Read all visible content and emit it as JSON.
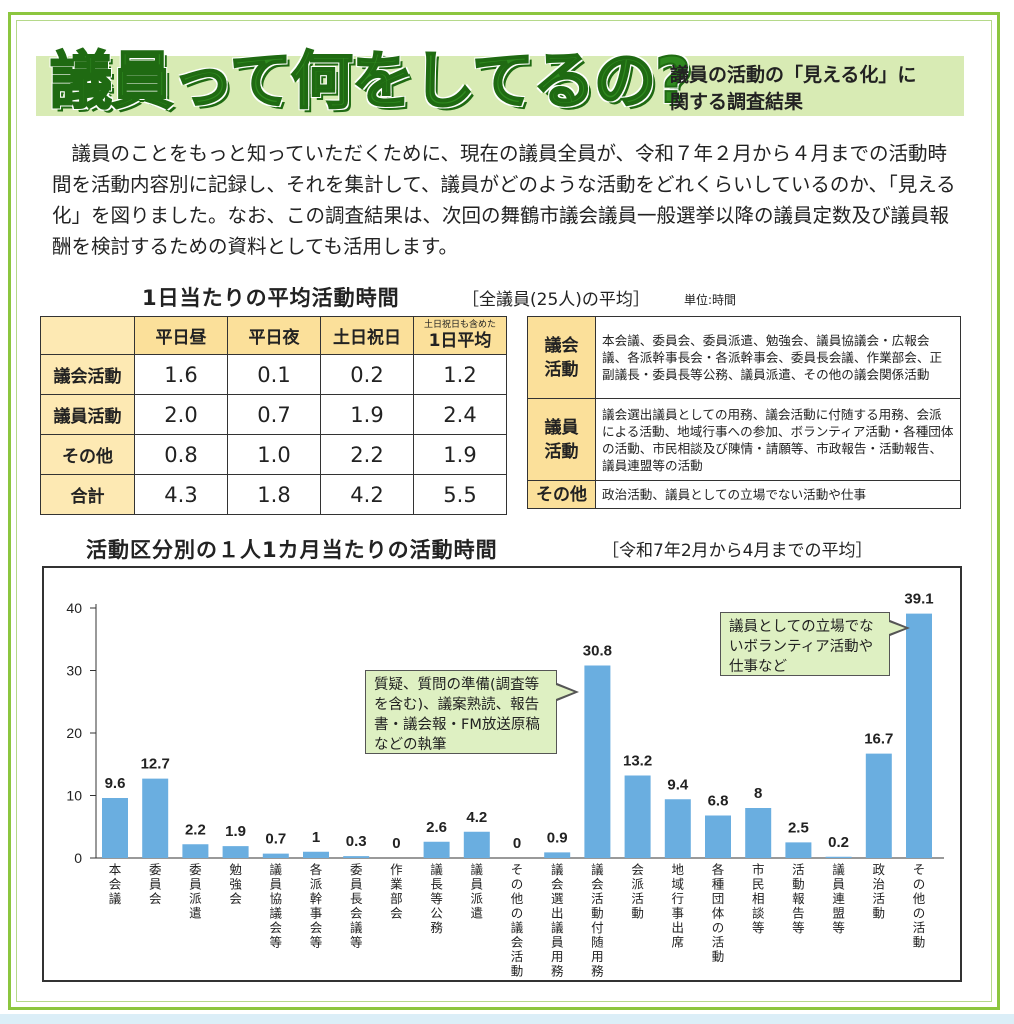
{
  "header": {
    "title": "議員って何をしてるの?",
    "subtitle_line1": "議員の活動の「見える化」に",
    "subtitle_line2": "関する調査結果"
  },
  "intro": "議員のことをもっと知っていただくために、現在の議員全員が、令和７年２月から４月までの活動時間を活動内容別に記録し、それを集計して、議員がどのような活動をどれくらいしているのか、「見える化」を図りました。なお、この調査結果は、次回の舞鶴市議会議員一般選挙以降の議員定数及び議員報酬を検討するための資料としても活用します。",
  "daily": {
    "title": "1日当たりの平均活動時間",
    "note": "［全議員(25人)の平均］",
    "unit": "単位:時間",
    "columns": [
      "平日昼",
      "平日夜",
      "土日祝日"
    ],
    "col4_note": "土日祝日も含めた",
    "col4": "1日平均",
    "rows": [
      {
        "label": "議会活動",
        "values": [
          "1.6",
          "0.1",
          "0.2",
          "1.2"
        ]
      },
      {
        "label": "議員活動",
        "values": [
          "2.0",
          "0.7",
          "1.9",
          "2.4"
        ]
      },
      {
        "label": "その他",
        "values": [
          "0.8",
          "1.0",
          "2.2",
          "1.9"
        ]
      },
      {
        "label": "合計",
        "values": [
          "4.3",
          "1.8",
          "4.2",
          "5.5"
        ]
      }
    ]
  },
  "definitions": [
    {
      "label": "議会\n活動",
      "text": "本会議、委員会、委員派遣、勉強会、議員協議会・広報会議、各派幹事長会・各派幹事会、委員長会議、作業部会、正副議長・委員長等公務、議員派遣、その他の議会関係活動"
    },
    {
      "label": "議員\n活動",
      "text": "議会選出議員としての用務、議会活動に付随する用務、会派による活動、地域行事への参加、ボランティア活動・各種団体の活動、市民相談及び陳情・請願等、市政報告・活動報告、議員連盟等の活動"
    },
    {
      "label": "その他",
      "text": "政治活動、議員としての立場でない活動や仕事"
    }
  ],
  "monthly": {
    "title": "活動区分別の１人1カ月当たりの活動時間",
    "note": "［令和7年2月から4月までの平均］"
  },
  "callouts": {
    "c1": "質疑、質問の準備(調査等を含む)、議案熟読、報告書・議会報・FM放送原稿などの執筆",
    "c2": "議員としての立場でないボランティア活動や仕事など"
  },
  "chart_data": {
    "type": "bar",
    "ylim": [
      0,
      40
    ],
    "yticks": [
      0,
      10,
      20,
      30,
      40
    ],
    "grid": false,
    "bar_color": "#6aaee0",
    "categories": [
      "本会議",
      "委員会",
      "委員派遣",
      "勉強会",
      "議員協議会等",
      "各派幹事会等",
      "委員長会議等",
      "作業部会",
      "議長等公務",
      "議員派遣",
      "その他の議会活動",
      "議会選出議員用務",
      "議会活動付随用務",
      "会派活動",
      "地域行事出席",
      "各種団体の活動",
      "市民相談等",
      "活動報告等",
      "議員連盟等",
      "政治活動",
      "その他の活動"
    ],
    "values": [
      9.6,
      12.7,
      2.2,
      1.9,
      0.7,
      1,
      0.3,
      0,
      2.6,
      4.2,
      0,
      0.9,
      30.8,
      13.2,
      9.4,
      6.8,
      8,
      2.5,
      0.2,
      16.7,
      39.1
    ],
    "labels": [
      "9.6",
      "12.7",
      "2.2",
      "1.9",
      "0.7",
      "1",
      "0.3",
      "0",
      "2.6",
      "4.2",
      "0",
      "0.9",
      "30.8",
      "13.2",
      "9.4",
      "6.8",
      "8",
      "2.5",
      "0.2",
      "16.7",
      "39.1"
    ]
  }
}
